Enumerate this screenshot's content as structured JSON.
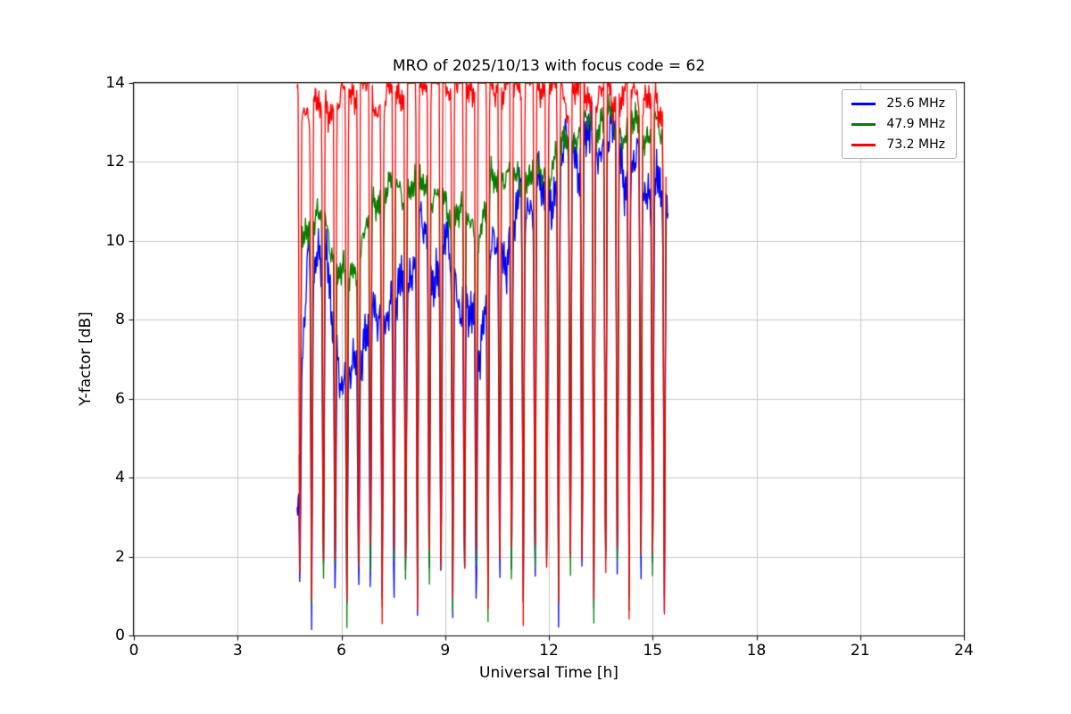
{
  "figure": {
    "background": "#ffffff"
  },
  "chart_data": {
    "type": "line",
    "title": "MRO of 2025/10/13 with focus code = 62",
    "xlabel": "Universal Time [h]",
    "ylabel": "Y-factor [dB]",
    "xlim": [
      0,
      24
    ],
    "ylim": [
      0,
      14
    ],
    "xticks": [
      0,
      3,
      6,
      9,
      12,
      15,
      18,
      21,
      24
    ],
    "yticks": [
      0,
      2,
      4,
      6,
      8,
      10,
      12,
      14
    ],
    "grid": true,
    "grid_color": "#c8c8c8",
    "legend_position": "upper right",
    "sample_step": 0.015,
    "dropouts": {
      "interval": 0.34,
      "width": 0.05,
      "low_base": 0.12,
      "low_var": 0.85,
      "centers": [
        4.8,
        5.14,
        5.48,
        5.82,
        6.16,
        6.5,
        6.84,
        7.18,
        7.52,
        7.86,
        8.2,
        8.54,
        8.88,
        9.22,
        9.56,
        9.9,
        10.24,
        10.58,
        10.92,
        11.26,
        11.6,
        11.94,
        12.28,
        12.62,
        12.96,
        13.3,
        13.64,
        13.98,
        14.32,
        14.66,
        15.0,
        15.34
      ]
    },
    "series": [
      {
        "name": "25.6 MHz",
        "color": "#0000ff",
        "seed": 1,
        "noise_amp": 1.0,
        "x_start": 4.72,
        "x_end": 15.45,
        "trend": [
          [
            4.72,
            2.9
          ],
          [
            4.9,
            7.2
          ],
          [
            5.05,
            9.7
          ],
          [
            5.3,
            9.9
          ],
          [
            5.6,
            8.8
          ],
          [
            5.9,
            7.3
          ],
          [
            6.15,
            6.2
          ],
          [
            6.45,
            6.7
          ],
          [
            6.7,
            7.9
          ],
          [
            7.0,
            7.7
          ],
          [
            7.3,
            8.7
          ],
          [
            7.6,
            8.2
          ],
          [
            7.9,
            8.9
          ],
          [
            8.2,
            10.3
          ],
          [
            8.5,
            9.9
          ],
          [
            8.8,
            9.2
          ],
          [
            9.1,
            9.6
          ],
          [
            9.4,
            8.9
          ],
          [
            9.7,
            7.8
          ],
          [
            10.0,
            7.6
          ],
          [
            10.3,
            9.2
          ],
          [
            10.6,
            9.9
          ],
          [
            10.9,
            10.1
          ],
          [
            11.2,
            10.8
          ],
          [
            11.5,
            11.2
          ],
          [
            11.8,
            11.0
          ],
          [
            12.1,
            11.5
          ],
          [
            12.4,
            11.9
          ],
          [
            12.7,
            12.4
          ],
          [
            13.0,
            12.2
          ],
          [
            13.3,
            12.8
          ],
          [
            13.6,
            12.5
          ],
          [
            13.9,
            12.3
          ],
          [
            14.2,
            12.0
          ],
          [
            14.5,
            11.8
          ],
          [
            14.8,
            11.5
          ],
          [
            15.1,
            11.2
          ],
          [
            15.45,
            10.5
          ]
        ]
      },
      {
        "name": "47.9 MHz",
        "color": "#008000",
        "seed": 2,
        "noise_amp": 0.55,
        "x_start": 4.78,
        "x_end": 15.4,
        "trend": [
          [
            4.78,
            10.0
          ],
          [
            5.0,
            10.3
          ],
          [
            5.3,
            10.6
          ],
          [
            5.6,
            10.2
          ],
          [
            5.9,
            9.4
          ],
          [
            6.15,
            8.9
          ],
          [
            6.4,
            9.3
          ],
          [
            6.7,
            10.3
          ],
          [
            7.0,
            11.0
          ],
          [
            7.3,
            11.4
          ],
          [
            7.6,
            11.2
          ],
          [
            7.9,
            11.3
          ],
          [
            8.2,
            11.5
          ],
          [
            8.5,
            11.4
          ],
          [
            8.8,
            11.0
          ],
          [
            9.1,
            10.7
          ],
          [
            9.4,
            10.9
          ],
          [
            9.7,
            10.4
          ],
          [
            10.0,
            10.2
          ],
          [
            10.3,
            11.3
          ],
          [
            10.6,
            11.9
          ],
          [
            10.9,
            11.6
          ],
          [
            11.2,
            11.4
          ],
          [
            11.5,
            11.8
          ],
          [
            11.8,
            11.6
          ],
          [
            12.1,
            12.0
          ],
          [
            12.4,
            12.3
          ],
          [
            12.7,
            12.6
          ],
          [
            13.0,
            13.0
          ],
          [
            13.3,
            12.9
          ],
          [
            13.6,
            13.1
          ],
          [
            13.9,
            12.9
          ],
          [
            14.2,
            12.8
          ],
          [
            14.5,
            12.9
          ],
          [
            14.8,
            12.7
          ],
          [
            15.1,
            12.8
          ],
          [
            15.4,
            12.5
          ]
        ]
      },
      {
        "name": "73.2 MHz",
        "color": "#ff0000",
        "seed": 3,
        "noise_amp": 0.6,
        "x_start": 4.72,
        "x_end": 15.4,
        "trend": [
          [
            4.72,
            13.6
          ],
          [
            5.0,
            13.4
          ],
          [
            5.3,
            13.2
          ],
          [
            5.6,
            13.6
          ],
          [
            5.9,
            13.3
          ],
          [
            6.2,
            13.8
          ],
          [
            6.5,
            14.0
          ],
          [
            6.8,
            13.9
          ],
          [
            7.1,
            13.4
          ],
          [
            7.4,
            13.6
          ],
          [
            7.7,
            13.9
          ],
          [
            8.0,
            14.1
          ],
          [
            8.3,
            14.2
          ],
          [
            8.6,
            14.0
          ],
          [
            8.9,
            14.2
          ],
          [
            9.2,
            14.1
          ],
          [
            9.5,
            13.9
          ],
          [
            9.8,
            14.0
          ],
          [
            10.1,
            14.2
          ],
          [
            10.4,
            14.1
          ],
          [
            10.7,
            13.8
          ],
          [
            11.0,
            14.0
          ],
          [
            11.3,
            14.2
          ],
          [
            11.6,
            13.9
          ],
          [
            11.9,
            14.1
          ],
          [
            12.2,
            13.8
          ],
          [
            12.5,
            13.6
          ],
          [
            12.8,
            13.9
          ],
          [
            13.1,
            13.7
          ],
          [
            13.4,
            13.5
          ],
          [
            13.7,
            13.8
          ],
          [
            14.0,
            13.6
          ],
          [
            14.3,
            13.9
          ],
          [
            14.6,
            13.7
          ],
          [
            14.9,
            13.5
          ],
          [
            15.2,
            13.4
          ],
          [
            15.4,
            13.2
          ]
        ]
      }
    ]
  }
}
